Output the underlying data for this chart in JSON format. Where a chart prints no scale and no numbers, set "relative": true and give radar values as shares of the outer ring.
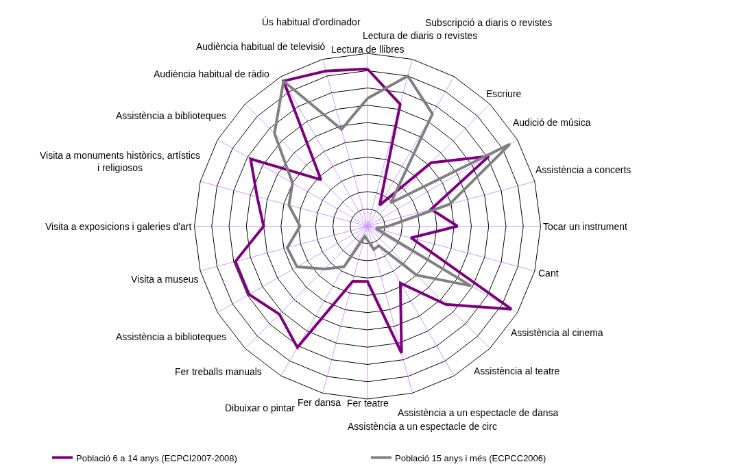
{
  "chart_data": {
    "type": "radar",
    "relative": true,
    "grid": true,
    "legend": "bottom",
    "marker": "none",
    "line_style": "solid",
    "categories": [
      "Lectura de llibres",
      "Lectura de diaris o revistes",
      "Subscripció a diaris o revistes",
      "Escriure",
      "Audició de música",
      "Assistència a concerts",
      "Tocar un instrument",
      "Cant",
      "Assistència al cinema",
      "Assistència al teatre",
      "Assistència a un espectacle de dansa",
      "Assistència a un espectacle de circ",
      "Fer teatre",
      "Fer dansa",
      "Dibuixar o pintar",
      "Fer treballs manuals",
      "Assistència a biblioteques",
      "Visita a museus",
      "Visita a exposicions i galeries d'art",
      "Visita a monuments històrics, artístics i religiosos",
      "Assistència a biblioteques",
      "Audiència habitual de ràdio",
      "Audiència habitual de televisió",
      "Ús habitual d'ordinador"
    ],
    "series": [
      {
        "name": "Població 6 a 14 anys (ECPCI2007-2008)",
        "color": "#7f007f",
        "values": [
          0.91,
          0.73,
          0.14,
          0.52,
          0.81,
          0.38,
          0.52,
          0.26,
          0.96,
          0.64,
          0.38,
          0.76,
          0.32,
          0.33,
          0.81,
          0.72,
          0.79,
          0.79,
          0.6,
          0.66,
          0.78,
          0.38,
          0.97,
          0.93
        ]
      },
      {
        "name": "Població 15 anys i més (ECPCC2006)",
        "color": "#808080",
        "values": [
          0.74,
          0.9,
          0.75,
          0.19,
          0.95,
          0.49,
          0.12,
          0.05,
          0.69,
          0.4,
          0.13,
          0.14,
          0.08,
          0.06,
          0.27,
          0.35,
          0.47,
          0.48,
          0.39,
          0.47,
          0.5,
          0.76,
          0.97,
          0.58
        ]
      }
    ]
  }
}
